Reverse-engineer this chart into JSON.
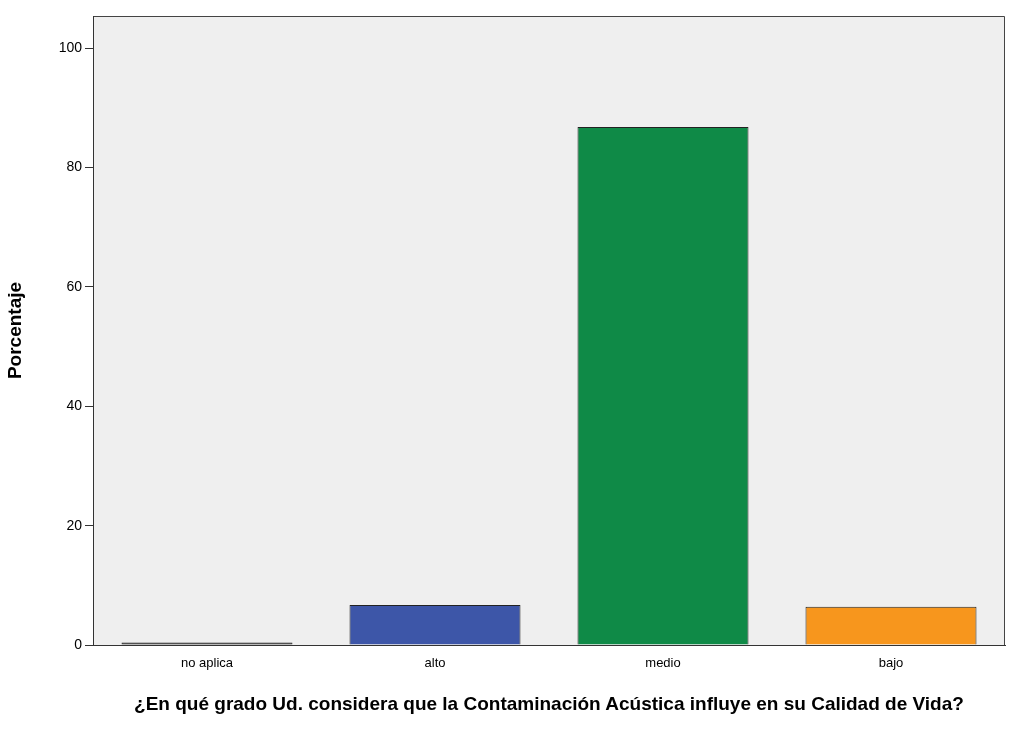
{
  "chart_data": {
    "type": "bar",
    "xlabel": "¿En qué grado Ud. considera que la Contaminación Acústica influye en su Calidad de Vida?",
    "ylabel": "Porcentaje",
    "categories": [
      "no aplica",
      "alto",
      "medio",
      "bajo"
    ],
    "values": [
      0.4,
      6.7,
      86.8,
      6.4
    ],
    "colors": [
      "#1a1a1a",
      "#3d56a8",
      "#0f8a47",
      "#f7961d"
    ],
    "ylim": [
      0,
      105.4
    ],
    "yticks": [
      0,
      20,
      40,
      60,
      80,
      100
    ],
    "grid": false,
    "legend": false
  }
}
